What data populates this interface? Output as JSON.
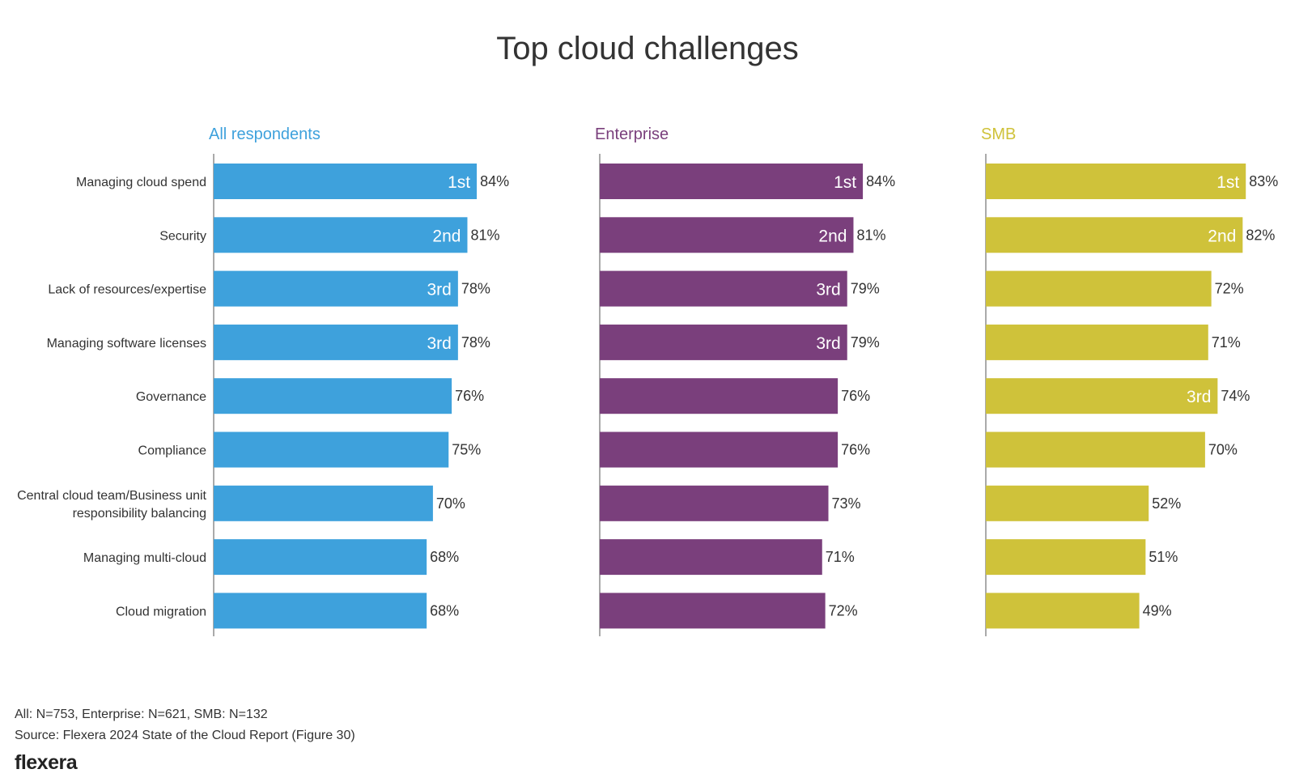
{
  "page": {
    "title": "Top cloud challenges",
    "footnote_n": "All: N=753, Enterprise: N=621, SMB: N=132",
    "footnote_source": "Source: Flexera 2024 State of the Cloud Report (Figure 30)",
    "logo": "flexera"
  },
  "chart_data": {
    "type": "bar",
    "orientation": "horizontal",
    "title": "Top cloud challenges",
    "categories": [
      "Managing cloud spend",
      "Security",
      "Lack of resources/expertise",
      "Managing software licenses",
      "Governance",
      "Compliance",
      "Central cloud team/Business unit responsibility balancing",
      "Managing multi-cloud",
      "Cloud migration"
    ],
    "category_lines": [
      [
        "Managing cloud spend"
      ],
      [
        "Security"
      ],
      [
        "Lack of resources/expertise"
      ],
      [
        "Managing software licenses"
      ],
      [
        "Governance"
      ],
      [
        "Compliance"
      ],
      [
        "Central cloud team/Business unit",
        "responsibility balancing"
      ],
      [
        "Managing multi-cloud"
      ],
      [
        "Cloud migration"
      ]
    ],
    "unit": "%",
    "grid": false,
    "series": [
      {
        "name": "All respondents",
        "color": "#3ea1dc",
        "values": [
          84,
          81,
          78,
          78,
          76,
          75,
          70,
          68,
          68
        ],
        "ranks": [
          "1st",
          "2nd",
          "3rd",
          "3rd",
          "",
          "",
          "",
          "",
          ""
        ]
      },
      {
        "name": "Enterprise",
        "color": "#7a3f7c",
        "values": [
          84,
          81,
          79,
          79,
          76,
          76,
          73,
          71,
          72
        ],
        "ranks": [
          "1st",
          "2nd",
          "3rd",
          "3rd",
          "",
          "",
          "",
          "",
          ""
        ]
      },
      {
        "name": "SMB",
        "color": "#cfc23a",
        "values": [
          83,
          82,
          72,
          71,
          74,
          70,
          52,
          51,
          49
        ],
        "ranks": [
          "1st",
          "2nd",
          "",
          "",
          "3rd",
          "",
          "",
          "",
          ""
        ]
      }
    ]
  }
}
